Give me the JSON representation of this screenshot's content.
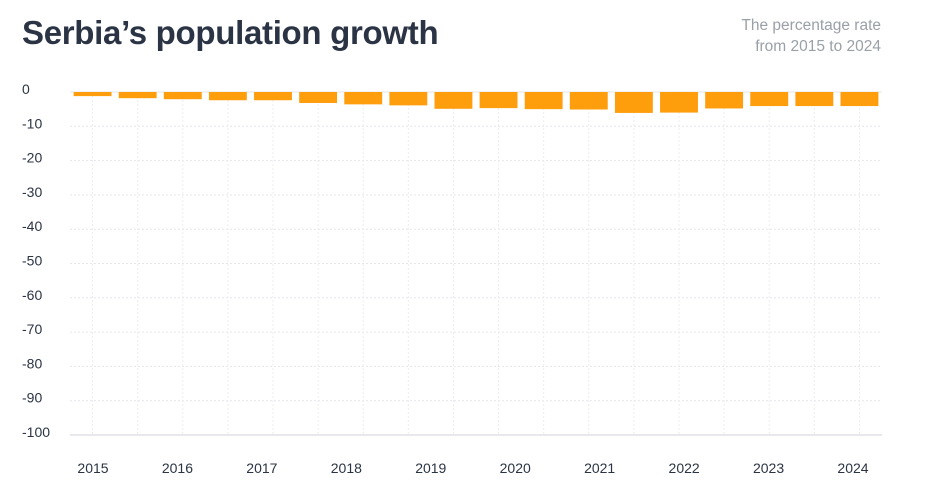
{
  "header": {
    "title": "Serbia’s population growth",
    "subtitle_line1": "The percentage rate",
    "subtitle_line2": "from 2015 to 2024"
  },
  "colors": {
    "bar": "#ff9e0d",
    "grid": "#e4e6ea",
    "text": "#2b3444"
  },
  "chart_data": {
    "type": "bar",
    "title": "Serbia’s population growth",
    "subtitle": "The percentage rate from 2015 to 2024",
    "categories": [
      "2015",
      "2015.5",
      "2016",
      "2016.5",
      "2017",
      "2017.5",
      "2018",
      "2018.5",
      "2019",
      "2019.5",
      "2020",
      "2020.5",
      "2021",
      "2021.5",
      "2022",
      "2022.5",
      "2023",
      "2023.5"
    ],
    "values": [
      -1.2,
      -1.8,
      -2.1,
      -2.4,
      -2.4,
      -3.2,
      -3.6,
      -3.9,
      -4.9,
      -4.7,
      -5.0,
      -5.1,
      -6.1,
      -6.0,
      -4.8,
      -4.1,
      -4.1,
      -4.1
    ],
    "xtick_labels": [
      "2015",
      "2016",
      "2017",
      "2018",
      "2019",
      "2020",
      "2021",
      "2022",
      "2023",
      "2024"
    ],
    "yticks": [
      0,
      -10,
      -20,
      -30,
      -40,
      -50,
      -60,
      -70,
      -80,
      -90,
      -100
    ],
    "ylim": [
      -100,
      0
    ],
    "grid": true,
    "xlabel": "",
    "ylabel": ""
  }
}
